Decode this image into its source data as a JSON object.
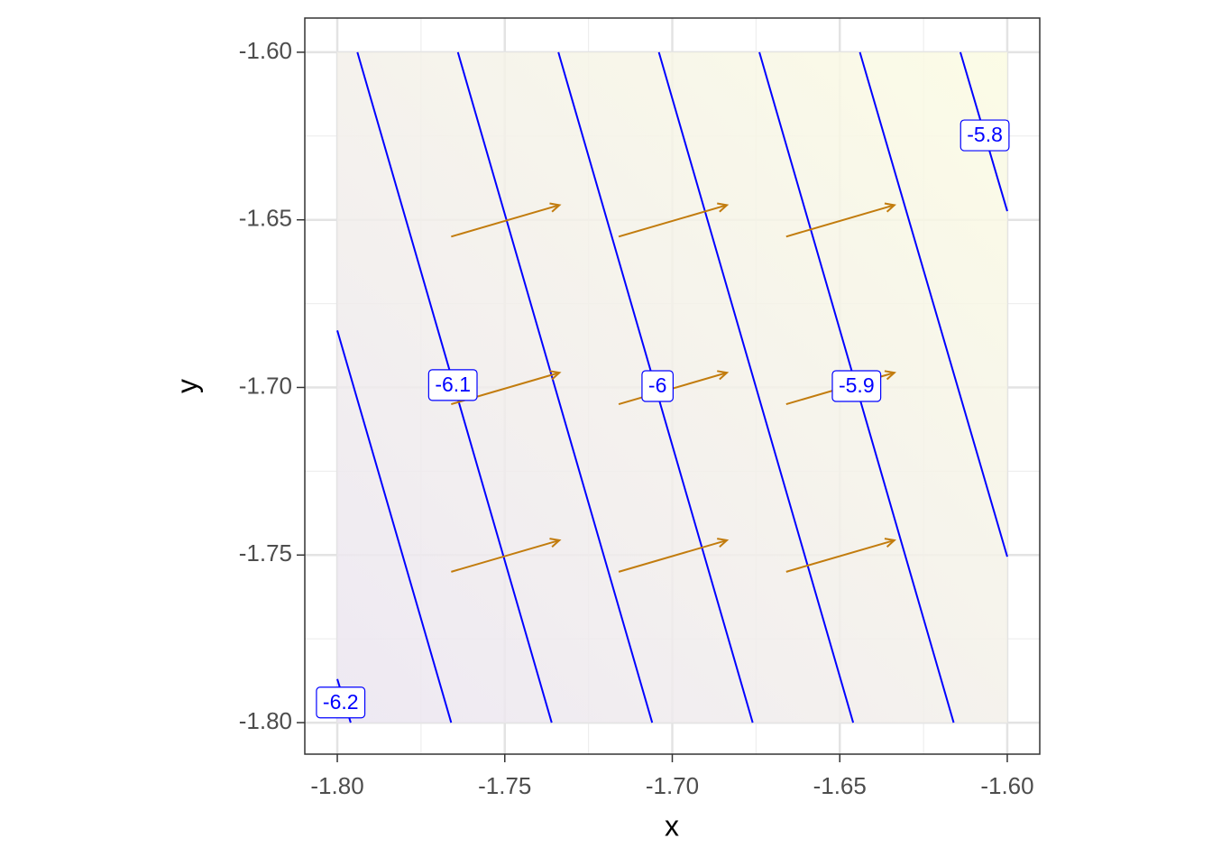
{
  "chart_data": {
    "type": "contour",
    "x_label": "x",
    "y_label": "y",
    "xlim": [
      -1.8097,
      -1.5903
    ],
    "ylim": [
      -1.8094,
      -1.5898
    ],
    "xticks": [
      {
        "value": -1.8,
        "label": "-1.80"
      },
      -1.75,
      {
        "value": -1.7,
        "label": "-1.70"
      },
      -1.65,
      {
        "value": -1.6,
        "label": "-1.60"
      }
    ],
    "yticks": [
      {
        "value": -1.8,
        "label": "-1.80"
      },
      -1.75,
      {
        "value": -1.7,
        "label": "-1.70"
      },
      -1.65,
      {
        "value": -1.6,
        "label": "-1.60"
      }
    ],
    "grid": true,
    "fill_gradient": [
      "#ebe5f1",
      "#fbfbe2"
    ],
    "contour_color": "#0000ff",
    "contours": [
      {
        "x": [
          -1.8,
          -1.796
        ],
        "y": [
          -1.787,
          -1.8
        ],
        "level": -6.2,
        "label_x": -1.799,
        "label_y": -1.794
      },
      {
        "x": [
          -1.8,
          -1.766
        ],
        "y": [
          -1.683,
          -1.8
        ]
      },
      {
        "x": [
          -1.794,
          -1.736
        ],
        "y": [
          -1.6,
          -1.8
        ],
        "level": -6.1,
        "label_x": -1.7655,
        "label_y": -1.6993
      },
      {
        "x": [
          -1.764,
          -1.706
        ],
        "y": [
          -1.6,
          -1.8
        ]
      },
      {
        "x": [
          -1.734,
          -1.676
        ],
        "y": [
          -1.6,
          -1.8
        ],
        "level": -6,
        "label_x": -1.7044,
        "label_y": -1.6996
      },
      {
        "x": [
          -1.704,
          -1.646
        ],
        "y": [
          -1.6,
          -1.8
        ]
      },
      {
        "x": [
          -1.674,
          -1.616
        ],
        "y": [
          -1.6,
          -1.8
        ],
        "level": -5.9,
        "label_x": -1.645,
        "label_y": -1.6996
      },
      {
        "x": [
          -1.644,
          -1.6
        ],
        "y": [
          -1.6,
          -1.7505
        ]
      },
      {
        "x": [
          -1.614,
          -1.6
        ],
        "y": [
          -1.6,
          -1.6474
        ],
        "level": -5.8,
        "label_x": -1.6067,
        "label_y": -1.6248
      }
    ],
    "vector_color": "#c27c0e",
    "vectors": {
      "x": [
        -1.766,
        -1.716,
        -1.666,
        -1.766,
        -1.716,
        -1.666,
        -1.766,
        -1.716,
        -1.666
      ],
      "y": [
        -1.655,
        -1.655,
        -1.655,
        -1.705,
        -1.705,
        -1.705,
        -1.755,
        -1.755,
        -1.755
      ],
      "dx": [
        0.0323,
        0.0323,
        0.0323,
        0.0323,
        0.0323,
        0.0323,
        0.0323,
        0.0323,
        0.0323
      ],
      "dy": [
        0.0094,
        0.0094,
        0.0094,
        0.0094,
        0.0094,
        0.0094,
        0.0094,
        0.0094,
        0.0094
      ]
    }
  }
}
